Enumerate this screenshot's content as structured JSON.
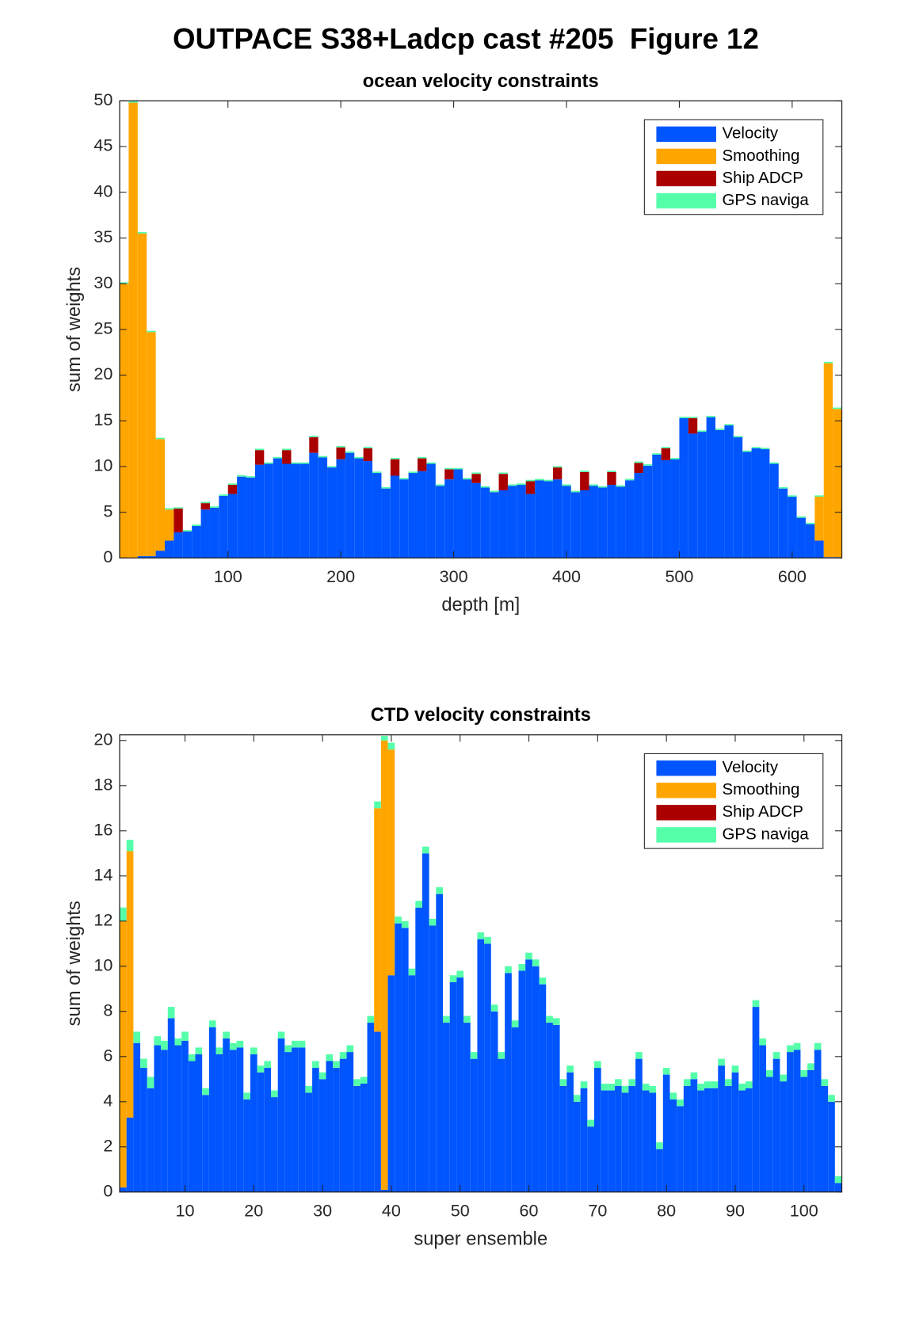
{
  "title": "OUTPACE S38+Ladcp cast #205  Figure 12",
  "chart_data": [
    {
      "type": "bar",
      "stacked": true,
      "title": "ocean velocity constraints",
      "xlabel": "depth [m]",
      "ylabel": "sum of weights",
      "x": [
        8,
        16,
        24,
        32,
        40,
        48,
        56,
        64,
        72,
        80,
        88,
        96,
        104,
        112,
        120,
        128,
        136,
        144,
        152,
        160,
        168,
        176,
        184,
        192,
        200,
        208,
        216,
        224,
        232,
        240,
        248,
        256,
        264,
        272,
        280,
        288,
        296,
        304,
        312,
        320,
        328,
        336,
        344,
        352,
        360,
        368,
        376,
        384,
        392,
        400,
        408,
        416,
        424,
        432,
        440,
        448,
        456,
        464,
        472,
        480,
        488,
        496,
        504,
        512,
        520,
        528,
        536,
        544,
        552,
        560,
        568,
        576,
        584,
        592,
        600,
        608,
        616,
        624,
        632,
        640
      ],
      "series": [
        {
          "name": "Velocity",
          "color": "#0055ff",
          "values": [
            0,
            0,
            0.2,
            0.2,
            0.8,
            1.9,
            2.8,
            2.9,
            3.5,
            5.3,
            5.5,
            6.8,
            7.0,
            8.9,
            8.8,
            10.2,
            10.3,
            10.9,
            10.3,
            10.3,
            10.3,
            11.5,
            11.0,
            9.9,
            10.8,
            11.5,
            10.9,
            10.6,
            9.3,
            7.6,
            9.0,
            8.6,
            9.3,
            9.5,
            10.3,
            7.9,
            8.6,
            9.7,
            8.6,
            8.2,
            7.7,
            7.2,
            7.4,
            7.9,
            8.0,
            7.0,
            8.5,
            8.4,
            8.6,
            7.9,
            7.2,
            7.4,
            7.9,
            7.7,
            8.0,
            7.8,
            8.5,
            9.3,
            10.1,
            11.3,
            10.7,
            10.8,
            15.3,
            13.6,
            13.8,
            15.4,
            14.0,
            14.5,
            13.2,
            11.6,
            12.0,
            11.9,
            10.3,
            7.6,
            6.7,
            4.4,
            3.7,
            1.9,
            0.1,
            0.1
          ]
        },
        {
          "name": "Smoothing",
          "color": "#ffa500",
          "values": [
            30,
            49.8,
            35.3,
            24.5,
            12.2,
            3.4,
            0,
            0,
            0,
            0,
            0,
            0,
            0,
            0,
            0,
            0,
            0,
            0,
            0,
            0,
            0,
            0,
            0,
            0,
            0,
            0,
            0,
            0,
            0,
            0,
            0,
            0,
            0,
            0,
            0,
            0,
            0,
            0,
            0,
            0,
            0,
            0,
            0,
            0,
            0,
            0,
            0,
            0,
            0,
            0,
            0,
            0,
            0,
            0,
            0,
            0,
            0,
            0,
            0,
            0,
            0,
            0,
            0,
            0,
            0,
            0,
            0,
            0,
            0,
            0,
            0,
            0,
            0,
            0,
            0,
            0,
            0,
            4.8,
            21.2,
            16.2
          ]
        },
        {
          "name": "Ship ADCP",
          "color": "#aa0000",
          "values": [
            0,
            0,
            0,
            0,
            0,
            0,
            2.6,
            0,
            0,
            0.7,
            0,
            0,
            1.0,
            0,
            0,
            1.6,
            0,
            0,
            1.5,
            0,
            0,
            1.7,
            0,
            0,
            1.3,
            0,
            0,
            1.4,
            0,
            0,
            1.8,
            0,
            0,
            1.4,
            0,
            0,
            1.1,
            0,
            0,
            1.0,
            0,
            0,
            1.8,
            0,
            0,
            1.4,
            0,
            0,
            1.3,
            0,
            0,
            2.0,
            0,
            0,
            1.4,
            0,
            0,
            1.1,
            0,
            0,
            1.3,
            0,
            0,
            1.7,
            0,
            0,
            0,
            0,
            0,
            0,
            0,
            0,
            0,
            0,
            0,
            0,
            0,
            0,
            0,
            0
          ]
        },
        {
          "name": "GPS naviga",
          "color": "#55ffaa",
          "values": [
            0.15,
            0.15,
            0.15,
            0.15,
            0.15,
            0.15,
            0.15,
            0.15,
            0.15,
            0.15,
            0.15,
            0.15,
            0.15,
            0.15,
            0.15,
            0.15,
            0.15,
            0.15,
            0.15,
            0.15,
            0.15,
            0.15,
            0.15,
            0.15,
            0.15,
            0.15,
            0.15,
            0.15,
            0.15,
            0.15,
            0.15,
            0.15,
            0.15,
            0.15,
            0.15,
            0.15,
            0.15,
            0.15,
            0.15,
            0.15,
            0.15,
            0.15,
            0.15,
            0.15,
            0.15,
            0.15,
            0.15,
            0.15,
            0.15,
            0.15,
            0.15,
            0.15,
            0.15,
            0.15,
            0.15,
            0.15,
            0.15,
            0.15,
            0.15,
            0.15,
            0.15,
            0.15,
            0.15,
            0.15,
            0.15,
            0.15,
            0.15,
            0.15,
            0.15,
            0.15,
            0.15,
            0.15,
            0.15,
            0.15,
            0.15,
            0.15,
            0.15,
            0.15,
            0.15,
            0.15
          ]
        }
      ],
      "xlim": [
        4,
        644
      ],
      "ylim": [
        0,
        50
      ],
      "xticks": [
        100,
        200,
        300,
        400,
        500,
        600
      ],
      "yticks": [
        0,
        5,
        10,
        15,
        20,
        25,
        30,
        35,
        40,
        45,
        50
      ],
      "legend": "upper right"
    },
    {
      "type": "bar",
      "stacked": true,
      "title": "CTD velocity constraints",
      "xlabel": "super ensemble",
      "ylabel": "sum of weights",
      "x": [
        1,
        2,
        3,
        4,
        5,
        6,
        7,
        8,
        9,
        10,
        11,
        12,
        13,
        14,
        15,
        16,
        17,
        18,
        19,
        20,
        21,
        22,
        23,
        24,
        25,
        26,
        27,
        28,
        29,
        30,
        31,
        32,
        33,
        34,
        35,
        36,
        37,
        38,
        39,
        40,
        41,
        42,
        43,
        44,
        45,
        46,
        47,
        48,
        49,
        50,
        51,
        52,
        53,
        54,
        55,
        56,
        57,
        58,
        59,
        60,
        61,
        62,
        63,
        64,
        65,
        66,
        67,
        68,
        69,
        70,
        71,
        72,
        73,
        74,
        75,
        76,
        77,
        78,
        79,
        80,
        81,
        82,
        83,
        84,
        85,
        86,
        87,
        88,
        89,
        90,
        91,
        92,
        93,
        94,
        95,
        96,
        97,
        98,
        99,
        100,
        101,
        102,
        103,
        104,
        105
      ],
      "series": [
        {
          "name": "Velocity",
          "color": "#0055ff",
          "values": [
            0.2,
            3.3,
            6.6,
            5.5,
            4.6,
            6.5,
            6.3,
            7.7,
            6.5,
            6.7,
            5.8,
            6.1,
            4.3,
            7.3,
            6.1,
            6.8,
            6.3,
            6.4,
            4.1,
            6.1,
            5.3,
            5.5,
            4.2,
            6.8,
            6.2,
            6.4,
            6.4,
            4.4,
            5.5,
            5.0,
            5.8,
            5.5,
            5.9,
            6.2,
            4.7,
            4.8,
            7.5,
            7.1,
            0.1,
            9.6,
            11.9,
            11.7,
            9.6,
            12.6,
            15.0,
            11.8,
            13.2,
            7.5,
            9.3,
            9.5,
            7.5,
            5.9,
            11.2,
            11.0,
            8.0,
            5.9,
            9.7,
            7.3,
            9.8,
            10.3,
            10.0,
            9.2,
            7.5,
            7.4,
            4.7,
            5.3,
            4.0,
            4.6,
            2.9,
            5.5,
            4.5,
            4.5,
            4.7,
            4.4,
            4.7,
            5.9,
            4.5,
            4.4,
            1.9,
            5.2,
            4.1,
            3.8,
            4.7,
            5.0,
            4.5,
            4.6,
            4.6,
            5.6,
            4.7,
            5.3,
            4.5,
            4.6,
            8.2,
            6.5,
            5.1,
            5.9,
            4.9,
            6.2,
            6.3,
            5.1,
            5.4,
            6.3,
            4.7,
            4.0,
            0.4
          ]
        },
        {
          "name": "Smoothing",
          "color": "#ffa500",
          "values": [
            11.8,
            11.8,
            0,
            0,
            0,
            0,
            0,
            0,
            0,
            0,
            0,
            0,
            0,
            0,
            0,
            0,
            0,
            0,
            0,
            0,
            0,
            0,
            0,
            0,
            0,
            0,
            0,
            0,
            0,
            0,
            0,
            0,
            0,
            0,
            0,
            0,
            0,
            9.9,
            19.9,
            10.0,
            0,
            0,
            0,
            0,
            0,
            0,
            0,
            0,
            0,
            0,
            0,
            0,
            0,
            0,
            0,
            0,
            0,
            0,
            0,
            0,
            0,
            0,
            0,
            0,
            0,
            0,
            0,
            0,
            0,
            0,
            0,
            0,
            0,
            0,
            0,
            0,
            0,
            0,
            0,
            0,
            0,
            0,
            0,
            0,
            0,
            0,
            0,
            0,
            0,
            0,
            0,
            0,
            0,
            0,
            0,
            0,
            0,
            0,
            0,
            0,
            0,
            0,
            0,
            0,
            0
          ]
        },
        {
          "name": "Ship ADCP",
          "color": "#aa0000",
          "values": [
            0,
            0,
            0,
            0,
            0,
            0,
            0,
            0,
            0,
            0,
            0,
            0,
            0,
            0,
            0,
            0,
            0,
            0,
            0,
            0,
            0,
            0,
            0,
            0,
            0,
            0,
            0,
            0,
            0,
            0,
            0,
            0,
            0,
            0,
            0,
            0,
            0,
            0,
            0,
            0,
            0,
            0,
            0,
            0,
            0,
            0,
            0,
            0,
            0,
            0,
            0,
            0,
            0,
            0,
            0,
            0,
            0,
            0,
            0,
            0,
            0,
            0,
            0,
            0,
            0,
            0,
            0,
            0,
            0,
            0,
            0,
            0,
            0,
            0,
            0,
            0,
            0,
            0,
            0,
            0,
            0,
            0,
            0,
            0,
            0,
            0,
            0,
            0,
            0,
            0,
            0,
            0,
            0,
            0,
            0,
            0,
            0,
            0,
            0,
            0,
            0,
            0,
            0,
            0,
            0
          ]
        },
        {
          "name": "GPS naviga",
          "color": "#55ffaa",
          "values": [
            0.6,
            0.5,
            0.5,
            0.4,
            0.5,
            0.4,
            0.4,
            0.5,
            0.3,
            0.4,
            0.3,
            0.3,
            0.3,
            0.3,
            0.3,
            0.3,
            0.3,
            0.3,
            0.3,
            0.3,
            0.3,
            0.3,
            0.3,
            0.3,
            0.3,
            0.3,
            0.3,
            0.3,
            0.3,
            0.3,
            0.3,
            0.3,
            0.3,
            0.3,
            0.3,
            0.3,
            0.3,
            0.3,
            0.2,
            0.3,
            0.3,
            0.3,
            0.3,
            0.3,
            0.3,
            0.3,
            0.3,
            0.3,
            0.3,
            0.3,
            0.3,
            0.3,
            0.3,
            0.3,
            0.3,
            0.3,
            0.3,
            0.3,
            0.3,
            0.3,
            0.3,
            0.3,
            0.3,
            0.3,
            0.3,
            0.3,
            0.3,
            0.3,
            0.3,
            0.3,
            0.3,
            0.3,
            0.3,
            0.3,
            0.3,
            0.3,
            0.3,
            0.3,
            0.3,
            0.3,
            0.3,
            0.3,
            0.3,
            0.3,
            0.3,
            0.3,
            0.3,
            0.3,
            0.3,
            0.3,
            0.3,
            0.3,
            0.3,
            0.3,
            0.3,
            0.3,
            0.3,
            0.3,
            0.3,
            0.3,
            0.3,
            0.3,
            0.3,
            0.3,
            0.3
          ]
        }
      ],
      "xlim": [
        0.5,
        105.5
      ],
      "ylim": [
        0,
        20.25
      ],
      "xticks": [
        10,
        20,
        30,
        40,
        50,
        60,
        70,
        80,
        90,
        100
      ],
      "yticks": [
        0,
        2,
        4,
        6,
        8,
        10,
        12,
        14,
        16,
        18,
        20
      ],
      "legend": "upper right"
    }
  ]
}
